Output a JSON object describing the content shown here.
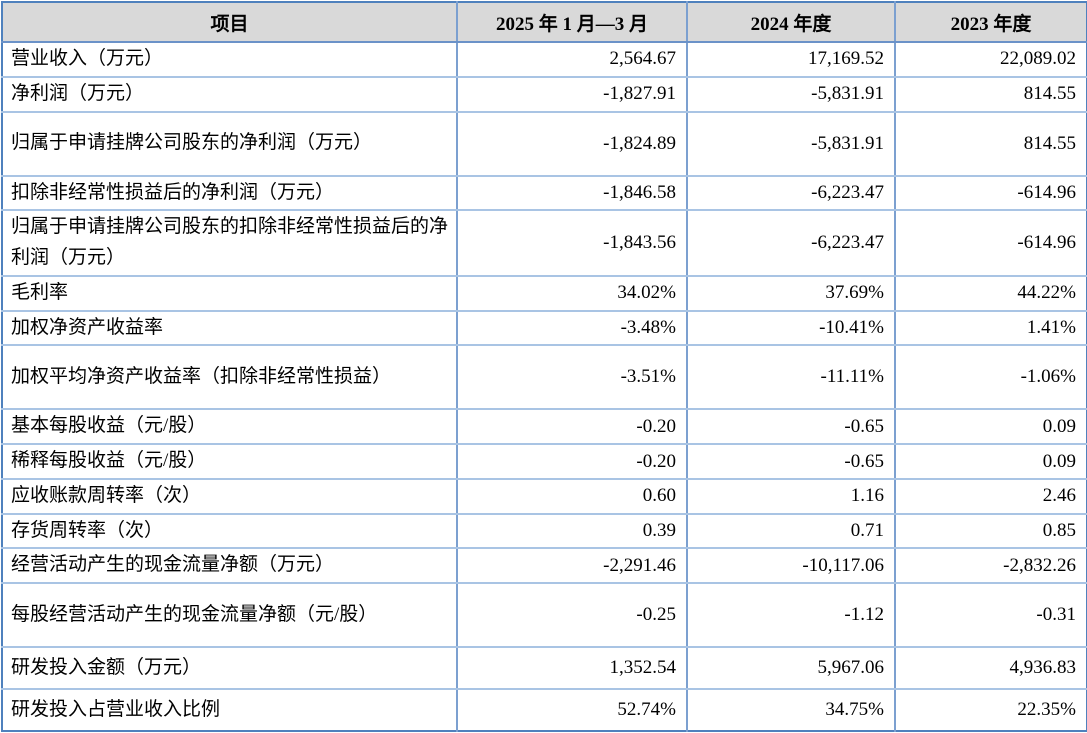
{
  "colors": {
    "header_bg": "#d9d9d9",
    "outer_border": "#4f81bd",
    "vertical_grid": "#7ca0d0",
    "horizontal_grid": "#a9c4e4",
    "text": "#000000"
  },
  "table": {
    "columns": [
      "项目",
      "2025 年 1 月—3 月",
      "2024 年度",
      "2023 年度"
    ],
    "rows": [
      {
        "item": "营业收入（万元）",
        "values": [
          "2,564.67",
          "17,169.52",
          "22,089.02"
        ]
      },
      {
        "item": "净利润（万元）",
        "values": [
          "-1,827.91",
          "-5,831.91",
          "814.55"
        ]
      },
      {
        "item": "归属于申请挂牌公司股东的净利润（万元）",
        "values": [
          "-1,824.89",
          "-5,831.91",
          "814.55"
        ]
      },
      {
        "item": "扣除非经常性损益后的净利润（万元）",
        "values": [
          "-1,846.58",
          "-6,223.47",
          "-614.96"
        ]
      },
      {
        "item": "归属于申请挂牌公司股东的扣除非经常性损益后的净利润（万元）",
        "values": [
          "-1,843.56",
          "-6,223.47",
          "-614.96"
        ]
      },
      {
        "item": "毛利率",
        "values": [
          "34.02%",
          "37.69%",
          "44.22%"
        ]
      },
      {
        "item": "加权净资产收益率",
        "values": [
          "-3.48%",
          "-10.41%",
          "1.41%"
        ]
      },
      {
        "item": "加权平均净资产收益率（扣除非经常性损益）",
        "values": [
          "-3.51%",
          "-11.11%",
          "-1.06%"
        ]
      },
      {
        "item": "基本每股收益（元/股）",
        "values": [
          "-0.20",
          "-0.65",
          "0.09"
        ]
      },
      {
        "item": "稀释每股收益（元/股）",
        "values": [
          "-0.20",
          "-0.65",
          "0.09"
        ]
      },
      {
        "item": "应收账款周转率（次）",
        "values": [
          "0.60",
          "1.16",
          "2.46"
        ]
      },
      {
        "item": "存货周转率（次）",
        "values": [
          "0.39",
          "0.71",
          "0.85"
        ]
      },
      {
        "item": "经营活动产生的现金流量净额（万元）",
        "values": [
          "-2,291.46",
          "-10,117.06",
          "-2,832.26"
        ]
      },
      {
        "item": "每股经营活动产生的现金流量净额（元/股）",
        "values": [
          "-0.25",
          "-1.12",
          "-0.31"
        ]
      },
      {
        "item": "研发投入金额（万元）",
        "values": [
          "1,352.54",
          "5,967.06",
          "4,936.83"
        ]
      },
      {
        "item": "研发投入占营业收入比例",
        "values": [
          "52.74%",
          "34.75%",
          "22.35%"
        ]
      }
    ]
  }
}
